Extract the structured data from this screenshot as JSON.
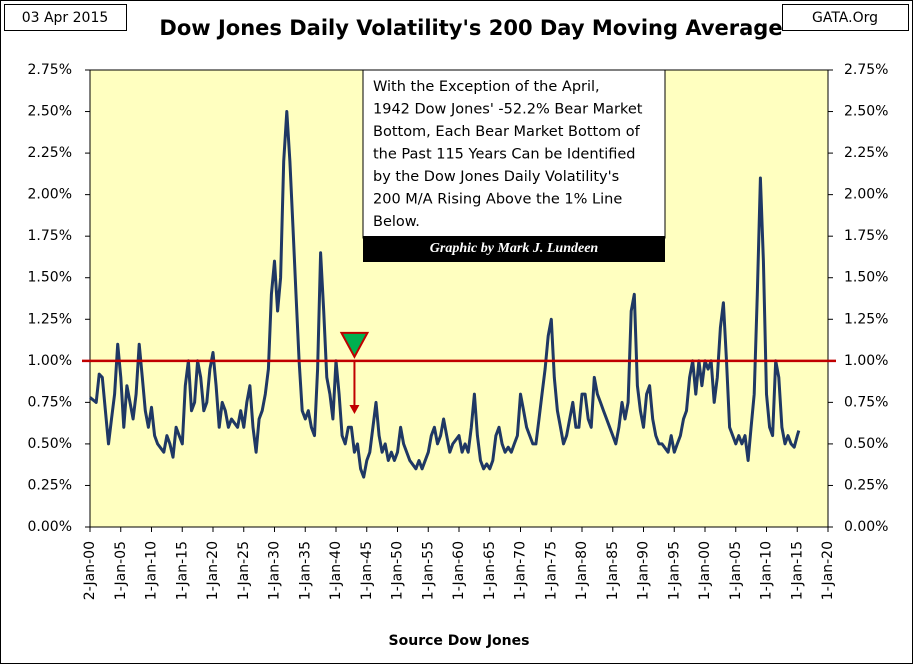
{
  "chart_data": {
    "type": "line",
    "title": "Dow Jones Daily Volatility's 200 Day Moving Average",
    "date": "03 Apr 2015",
    "source_site": "GATA.Org",
    "x_label": "Source Dow Jones",
    "annotation": [
      "With the Exception of the  April,",
      "1942 Dow Jones' -52.2% Bear Market",
      "Bottom, Each Bear Market Bottom of",
      "the Past 115 Years Can be Identified",
      "by the Dow Jones Daily Volatility's",
      "200 M/A Rising Above the 1% Line",
      "Below."
    ],
    "credit": "Graphic by Mark J. Lundeen",
    "reference_line": {
      "value": 1.0,
      "color": "#c00000"
    },
    "marker": {
      "x": 1943,
      "y": 1.0,
      "arrow_to": 0.68,
      "color": "#00b050"
    },
    "xlim": [
      1900,
      2020
    ],
    "ylim": [
      0,
      2.75
    ],
    "xticks": [
      {
        "value": 1900,
        "label": "2-Jan-00"
      },
      {
        "value": 1905,
        "label": "1-Jan-05"
      },
      {
        "value": 1910,
        "label": "1-Jan-10"
      },
      {
        "value": 1915,
        "label": "1-Jan-15"
      },
      {
        "value": 1920,
        "label": "1-Jan-20"
      },
      {
        "value": 1925,
        "label": "1-Jan-25"
      },
      {
        "value": 1930,
        "label": "1-Jan-30"
      },
      {
        "value": 1935,
        "label": "1-Jan-35"
      },
      {
        "value": 1940,
        "label": "1-Jan-40"
      },
      {
        "value": 1945,
        "label": "1-Jan-45"
      },
      {
        "value": 1950,
        "label": "1-Jan-50"
      },
      {
        "value": 1955,
        "label": "1-Jan-55"
      },
      {
        "value": 1960,
        "label": "1-Jan-60"
      },
      {
        "value": 1965,
        "label": "1-Jan-65"
      },
      {
        "value": 1970,
        "label": "1-Jan-70"
      },
      {
        "value": 1975,
        "label": "1-Jan-75"
      },
      {
        "value": 1980,
        "label": "1-Jan-80"
      },
      {
        "value": 1985,
        "label": "1-Jan-85"
      },
      {
        "value": 1990,
        "label": "1-Jan-90"
      },
      {
        "value": 1995,
        "label": "1-Jan-95"
      },
      {
        "value": 2000,
        "label": "1-Jan-00"
      },
      {
        "value": 2005,
        "label": "1-Jan-05"
      },
      {
        "value": 2010,
        "label": "1-Jan-10"
      },
      {
        "value": 2015,
        "label": "1-Jan-15"
      },
      {
        "value": 2020,
        "label": "1-Jan-20"
      }
    ],
    "yticks": [
      {
        "value": 0,
        "label": "0.00%"
      },
      {
        "value": 0.25,
        "label": "0.25%"
      },
      {
        "value": 0.5,
        "label": "0.50%"
      },
      {
        "value": 0.75,
        "label": "0.75%"
      },
      {
        "value": 1,
        "label": "1.00%"
      },
      {
        "value": 1.25,
        "label": "1.25%"
      },
      {
        "value": 1.5,
        "label": "1.50%"
      },
      {
        "value": 1.75,
        "label": "1.75%"
      },
      {
        "value": 2,
        "label": "2.00%"
      },
      {
        "value": 2.25,
        "label": "2.25%"
      },
      {
        "value": 2.5,
        "label": "2.50%"
      },
      {
        "value": 2.75,
        "label": "2.75%"
      }
    ],
    "color": "#1f3864",
    "x": [
      1900,
      1901,
      1901.5,
      1902,
      1902.5,
      1903,
      1903.5,
      1904,
      1904.5,
      1905,
      1905.5,
      1906,
      1906.5,
      1907,
      1907.5,
      1908,
      1908.5,
      1909,
      1909.5,
      1910,
      1910.5,
      1911,
      1912,
      1912.5,
      1913,
      1913.5,
      1914,
      1914.5,
      1915,
      1915.5,
      1916,
      1916.5,
      1917,
      1917.5,
      1918,
      1918.5,
      1919,
      1919.5,
      1920,
      1920.5,
      1921,
      1921.5,
      1922,
      1922.5,
      1923,
      1924,
      1924.5,
      1925,
      1925.5,
      1926,
      1926.5,
      1927,
      1927.5,
      1928,
      1928.5,
      1929,
      1929.5,
      1930,
      1930.5,
      1931,
      1931.5,
      1932,
      1932.5,
      1933,
      1933.5,
      1934,
      1934.5,
      1935,
      1935.5,
      1936,
      1936.5,
      1937,
      1937.5,
      1938,
      1938.5,
      1939,
      1939.5,
      1940,
      1940.5,
      1941,
      1941.5,
      1942,
      1942.5,
      1943,
      1943.5,
      1944,
      1944.5,
      1945,
      1945.5,
      1946,
      1946.5,
      1947,
      1947.5,
      1948,
      1948.5,
      1949,
      1949.5,
      1950,
      1950.5,
      1951,
      1952,
      1953,
      1953.5,
      1954,
      1955,
      1955.5,
      1956,
      1956.5,
      1957,
      1957.5,
      1958,
      1958.5,
      1959,
      1960,
      1960.5,
      1961,
      1961.5,
      1962,
      1962.5,
      1963,
      1963.5,
      1964,
      1964.5,
      1965,
      1965.5,
      1966,
      1966.5,
      1967,
      1967.5,
      1968,
      1968.5,
      1969,
      1969.5,
      1970,
      1970.5,
      1971,
      1971.5,
      1972,
      1972.5,
      1973,
      1973.5,
      1974,
      1974.5,
      1975,
      1975.5,
      1976,
      1976.5,
      1977,
      1977.5,
      1978,
      1978.5,
      1979,
      1979.5,
      1980,
      1980.5,
      1981,
      1981.5,
      1982,
      1982.5,
      1983,
      1983.5,
      1984,
      1984.5,
      1985,
      1985.5,
      1986,
      1986.5,
      1987,
      1987.5,
      1988,
      1988.5,
      1989,
      1989.5,
      1990,
      1990.5,
      1991,
      1991.5,
      1992,
      1992.5,
      1993,
      1994,
      1994.5,
      1995,
      1995.5,
      1996,
      1996.5,
      1997,
      1997.5,
      1998,
      1998.5,
      1999,
      1999.5,
      2000,
      2000.5,
      2001,
      2001.5,
      2002,
      2002.5,
      2003,
      2003.5,
      2004,
      2004.5,
      2005,
      2005.5,
      2006,
      2006.5,
      2007,
      2007.5,
      2008,
      2008.5,
      2009,
      2009.5,
      2010,
      2010.5,
      2011,
      2011.5,
      2012,
      2012.5,
      2013,
      2013.5,
      2014,
      2014.5,
      2015,
      2015.25
    ],
    "values": [
      0.78,
      0.75,
      0.92,
      0.9,
      0.7,
      0.5,
      0.65,
      0.8,
      1.1,
      0.9,
      0.6,
      0.85,
      0.75,
      0.65,
      0.8,
      1.1,
      0.9,
      0.7,
      0.6,
      0.72,
      0.55,
      0.5,
      0.45,
      0.55,
      0.5,
      0.42,
      0.6,
      0.55,
      0.5,
      0.85,
      1.0,
      0.7,
      0.75,
      1.0,
      0.9,
      0.7,
      0.75,
      0.95,
      1.05,
      0.85,
      0.6,
      0.75,
      0.7,
      0.6,
      0.65,
      0.6,
      0.7,
      0.6,
      0.75,
      0.85,
      0.6,
      0.45,
      0.65,
      0.7,
      0.8,
      0.95,
      1.4,
      1.6,
      1.3,
      1.5,
      2.2,
      2.5,
      2.2,
      1.8,
      1.4,
      1.0,
      0.7,
      0.65,
      0.7,
      0.6,
      0.55,
      0.95,
      1.65,
      1.3,
      0.9,
      0.8,
      0.65,
      1.0,
      0.8,
      0.55,
      0.5,
      0.6,
      0.6,
      0.45,
      0.5,
      0.35,
      0.3,
      0.4,
      0.45,
      0.6,
      0.75,
      0.55,
      0.45,
      0.5,
      0.4,
      0.45,
      0.4,
      0.45,
      0.6,
      0.5,
      0.4,
      0.35,
      0.4,
      0.35,
      0.45,
      0.55,
      0.6,
      0.5,
      0.55,
      0.65,
      0.55,
      0.45,
      0.5,
      0.55,
      0.45,
      0.5,
      0.45,
      0.6,
      0.8,
      0.55,
      0.4,
      0.35,
      0.38,
      0.35,
      0.4,
      0.55,
      0.6,
      0.5,
      0.45,
      0.48,
      0.45,
      0.5,
      0.55,
      0.8,
      0.7,
      0.6,
      0.55,
      0.5,
      0.5,
      0.65,
      0.8,
      0.95,
      1.15,
      1.25,
      0.9,
      0.7,
      0.6,
      0.5,
      0.55,
      0.65,
      0.75,
      0.6,
      0.6,
      0.8,
      0.8,
      0.65,
      0.6,
      0.9,
      0.8,
      0.75,
      0.7,
      0.65,
      0.6,
      0.55,
      0.5,
      0.6,
      0.75,
      0.65,
      0.75,
      1.3,
      1.4,
      0.85,
      0.7,
      0.6,
      0.8,
      0.85,
      0.65,
      0.55,
      0.5,
      0.5,
      0.45,
      0.55,
      0.45,
      0.5,
      0.55,
      0.65,
      0.7,
      0.9,
      1.0,
      0.8,
      1.0,
      0.85,
      1.0,
      0.95,
      1.0,
      0.75,
      0.9,
      1.2,
      1.35,
      1.0,
      0.6,
      0.55,
      0.5,
      0.55,
      0.5,
      0.55,
      0.4,
      0.6,
      0.8,
      1.4,
      2.1,
      1.6,
      0.8,
      0.6,
      0.55,
      1.0,
      0.9,
      0.6,
      0.5,
      0.55,
      0.5,
      0.48,
      0.55,
      0.58
    ]
  }
}
